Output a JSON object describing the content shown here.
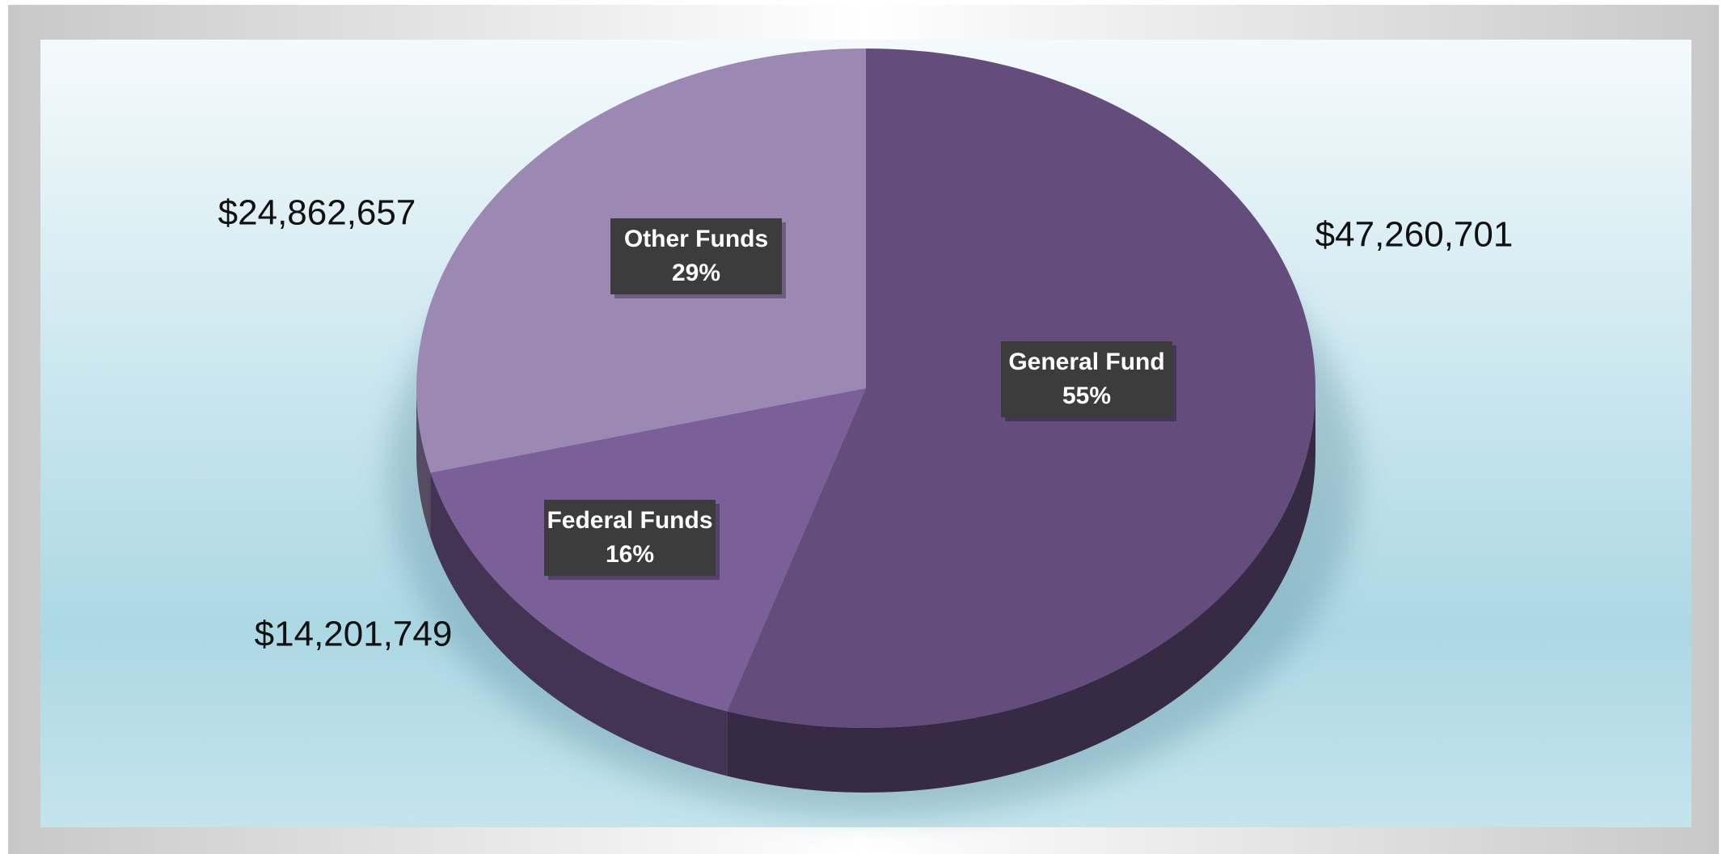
{
  "chart_data": {
    "type": "pie",
    "categories": [
      "General Fund",
      "Federal Funds",
      "Other Funds"
    ],
    "values": [
      55,
      16,
      29
    ],
    "value_labels": [
      "55%",
      "16%",
      "29%"
    ],
    "amounts": [
      47260701,
      14201749,
      24862657
    ],
    "amount_labels": [
      "$47,260,701",
      "$14,201,749",
      "$24,862,657"
    ],
    "colors": [
      "#644c7c",
      "#7a5f98",
      "#9b89b4"
    ]
  }
}
